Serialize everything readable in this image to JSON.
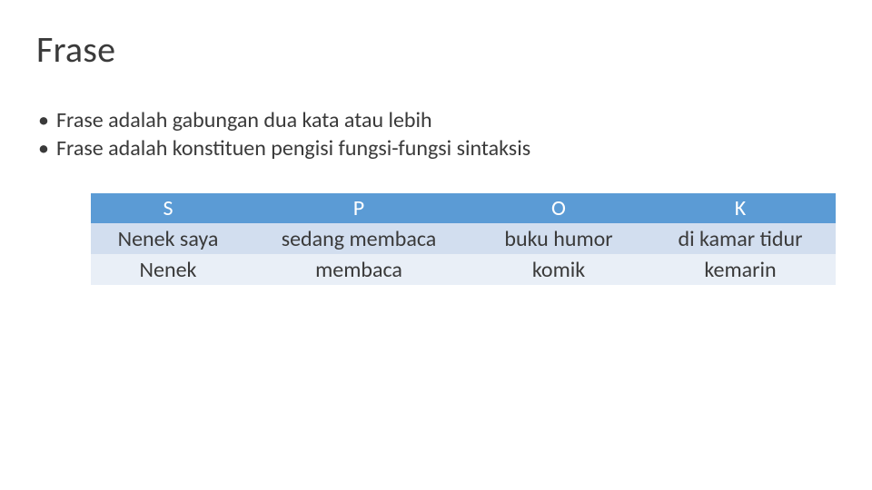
{
  "title": "Frase",
  "bullets": [
    "Frase adalah gabungan dua kata atau lebih",
    "Frase adalah konstituen pengisi fungsi-fungsi sintaksis"
  ],
  "table": {
    "type": "table",
    "header_bg": "#5b9bd5",
    "header_fg": "#ffffff",
    "row_bg_a": "#e9eff7",
    "row_bg_b": "#d2deef",
    "text_color": "#3a3a3a",
    "font_size": 24,
    "columns": [
      "S",
      "P",
      "O",
      "K"
    ],
    "rows": [
      [
        "Nenek saya",
        "sedang membaca",
        "buku humor",
        "di kamar tidur"
      ],
      [
        "Nenek",
        "membaca",
        "komik",
        "kemarin"
      ]
    ]
  }
}
